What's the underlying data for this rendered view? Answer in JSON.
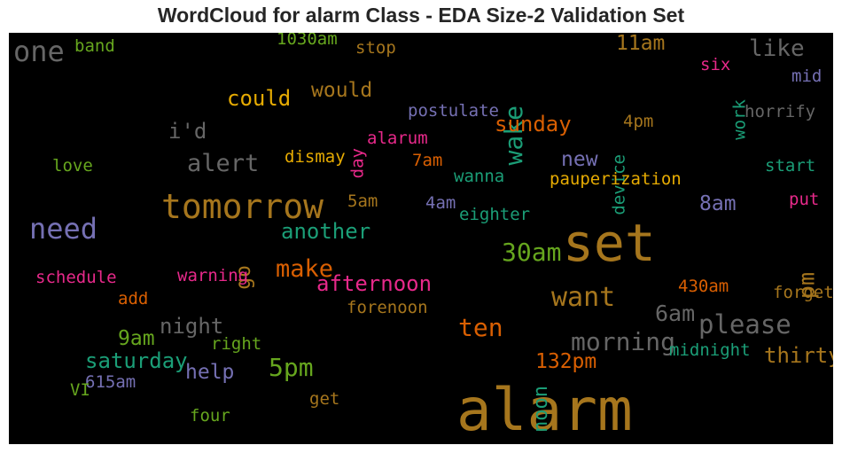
{
  "title": "WordCloud for alarm Class - EDA Size-2 Validation Set",
  "chart_data": {
    "type": "wordcloud",
    "title": "WordCloud for alarm Class - EDA Size-2 Validation Set",
    "background": "#000000",
    "palette": {
      "brown": "#a6761d",
      "orange": "#d95f02",
      "gold": "#e6ab02",
      "gray": "#666666",
      "purple": "#7570b3",
      "teal": "#1b9e77",
      "green": "#66a61e",
      "magenta": "#e7298a"
    },
    "words": [
      {
        "text": "alarm",
        "weight": 1.0,
        "color": "brown"
      },
      {
        "text": "set",
        "weight": 0.82,
        "color": "brown"
      },
      {
        "text": "tomorrow",
        "weight": 0.6,
        "color": "brown"
      },
      {
        "text": "need",
        "weight": 0.5,
        "color": "purple"
      },
      {
        "text": "one",
        "weight": 0.5,
        "color": "gray"
      },
      {
        "text": "want",
        "weight": 0.45,
        "color": "brown"
      },
      {
        "text": "please",
        "weight": 0.45,
        "color": "gray"
      },
      {
        "text": "wake",
        "weight": 0.4,
        "color": "teal",
        "vertical": true
      },
      {
        "text": "like",
        "weight": 0.38,
        "color": "gray"
      },
      {
        "text": "could",
        "weight": 0.36,
        "color": "gold"
      },
      {
        "text": "i'd",
        "weight": 0.36,
        "color": "gray"
      },
      {
        "text": "morning",
        "weight": 0.32,
        "color": "gray"
      },
      {
        "text": "ten",
        "weight": 0.32,
        "color": "orange"
      },
      {
        "text": "30am",
        "weight": 0.32,
        "color": "green"
      },
      {
        "text": "5pm",
        "weight": 0.32,
        "color": "green"
      },
      {
        "text": "make",
        "weight": 0.3,
        "color": "orange"
      },
      {
        "text": "alert",
        "weight": 0.3,
        "color": "gray"
      },
      {
        "text": "pm",
        "weight": 0.28,
        "color": "brown",
        "vertical": true
      },
      {
        "text": "6am",
        "weight": 0.28,
        "color": "gray"
      },
      {
        "text": "night",
        "weight": 0.26,
        "color": "gray"
      },
      {
        "text": "another",
        "weight": 0.25,
        "color": "teal"
      },
      {
        "text": "afternoon",
        "weight": 0.25,
        "color": "magenta"
      },
      {
        "text": "sunday",
        "weight": 0.25,
        "color": "orange"
      },
      {
        "text": "saturday",
        "weight": 0.25,
        "color": "teal"
      },
      {
        "text": "thirty",
        "weight": 0.25,
        "color": "brown"
      },
      {
        "text": "go",
        "weight": 0.24,
        "color": "brown",
        "vertical": true
      },
      {
        "text": "help",
        "weight": 0.24,
        "color": "purple"
      },
      {
        "text": "would",
        "weight": 0.24,
        "color": "brown"
      },
      {
        "text": "11am",
        "weight": 0.24,
        "color": "brown"
      },
      {
        "text": "new",
        "weight": 0.24,
        "color": "purple"
      },
      {
        "text": "8am",
        "weight": 0.24,
        "color": "purple"
      },
      {
        "text": "9am",
        "weight": 0.24,
        "color": "green"
      },
      {
        "text": "132pm",
        "weight": 0.24,
        "color": "orange"
      },
      {
        "text": "noon",
        "weight": 0.22,
        "color": "teal",
        "vertical": true
      },
      {
        "text": "band",
        "weight": 0.16,
        "color": "green"
      },
      {
        "text": "1030am",
        "weight": 0.16,
        "color": "green"
      },
      {
        "text": "stop",
        "weight": 0.16,
        "color": "brown"
      },
      {
        "text": "six",
        "weight": 0.16,
        "color": "magenta"
      },
      {
        "text": "work",
        "weight": 0.16,
        "color": "teal",
        "vertical": true
      },
      {
        "text": "mid",
        "weight": 0.16,
        "color": "purple"
      },
      {
        "text": "postulate",
        "weight": 0.16,
        "color": "purple"
      },
      {
        "text": "horrify",
        "weight": 0.16,
        "color": "gray"
      },
      {
        "text": "4pm",
        "weight": 0.16,
        "color": "brown"
      },
      {
        "text": "device",
        "weight": 0.16,
        "color": "teal",
        "vertical": true
      },
      {
        "text": "day",
        "weight": 0.16,
        "color": "magenta",
        "vertical": true
      },
      {
        "text": "alarum",
        "weight": 0.16,
        "color": "magenta"
      },
      {
        "text": "dismay",
        "weight": 0.16,
        "color": "gold"
      },
      {
        "text": "7am",
        "weight": 0.16,
        "color": "orange"
      },
      {
        "text": "love",
        "weight": 0.16,
        "color": "green"
      },
      {
        "text": "start",
        "weight": 0.16,
        "color": "teal"
      },
      {
        "text": "wanna",
        "weight": 0.16,
        "color": "teal"
      },
      {
        "text": "pauperization",
        "weight": 0.16,
        "color": "gold"
      },
      {
        "text": "5am",
        "weight": 0.16,
        "color": "brown"
      },
      {
        "text": "4am",
        "weight": 0.16,
        "color": "purple"
      },
      {
        "text": "eighter",
        "weight": 0.16,
        "color": "teal"
      },
      {
        "text": "put",
        "weight": 0.16,
        "color": "magenta"
      },
      {
        "text": "schedule",
        "weight": 0.16,
        "color": "magenta"
      },
      {
        "text": "warning",
        "weight": 0.16,
        "color": "magenta"
      },
      {
        "text": "430am",
        "weight": 0.16,
        "color": "orange"
      },
      {
        "text": "forget",
        "weight": 0.16,
        "color": "brown"
      },
      {
        "text": "add",
        "weight": 0.16,
        "color": "orange"
      },
      {
        "text": "forenoon",
        "weight": 0.16,
        "color": "brown"
      },
      {
        "text": "right",
        "weight": 0.16,
        "color": "green"
      },
      {
        "text": "midnight",
        "weight": 0.16,
        "color": "teal"
      },
      {
        "text": "615am",
        "weight": 0.16,
        "color": "purple"
      },
      {
        "text": "VI",
        "weight": 0.16,
        "color": "green"
      },
      {
        "text": "get",
        "weight": 0.16,
        "color": "brown"
      },
      {
        "text": "four",
        "weight": 0.16,
        "color": "green"
      }
    ]
  }
}
